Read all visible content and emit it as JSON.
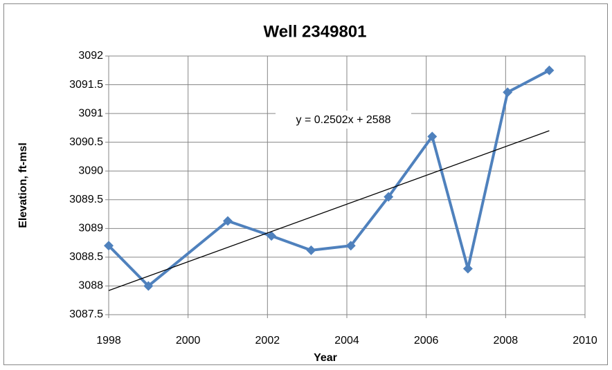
{
  "chart_data": {
    "type": "line",
    "title": "Well 2349801",
    "x_label": "Year",
    "y_label": "Elevation, ft-msl",
    "x": [
      1998,
      1999,
      2001,
      2002.1,
      2003.1,
      2004.1,
      2005.05,
      2006.15,
      2007.05,
      2008.05,
      2009.1
    ],
    "series": [
      {
        "color": "#4f81bd",
        "values": [
          3088.7,
          3088.0,
          3089.13,
          3088.87,
          3088.62,
          3088.7,
          3089.55,
          3090.6,
          3088.3,
          3091.37,
          3091.75
        ]
      }
    ],
    "trendline": {
      "x": [
        1998,
        2009.1
      ],
      "values": [
        3087.92,
        3090.7
      ],
      "label": "y = 0.2502x + 2588",
      "color": "#000000"
    },
    "xlim": [
      1998,
      2010
    ],
    "xticks": [
      1998,
      2000,
      2002,
      2004,
      2006,
      2008,
      2010
    ],
    "ylim": [
      3087.5,
      3092
    ],
    "yticks": [
      3087.5,
      3088,
      3088.5,
      3089,
      3089.5,
      3090,
      3090.5,
      3091,
      3091.5,
      3092
    ],
    "grid": true
  }
}
